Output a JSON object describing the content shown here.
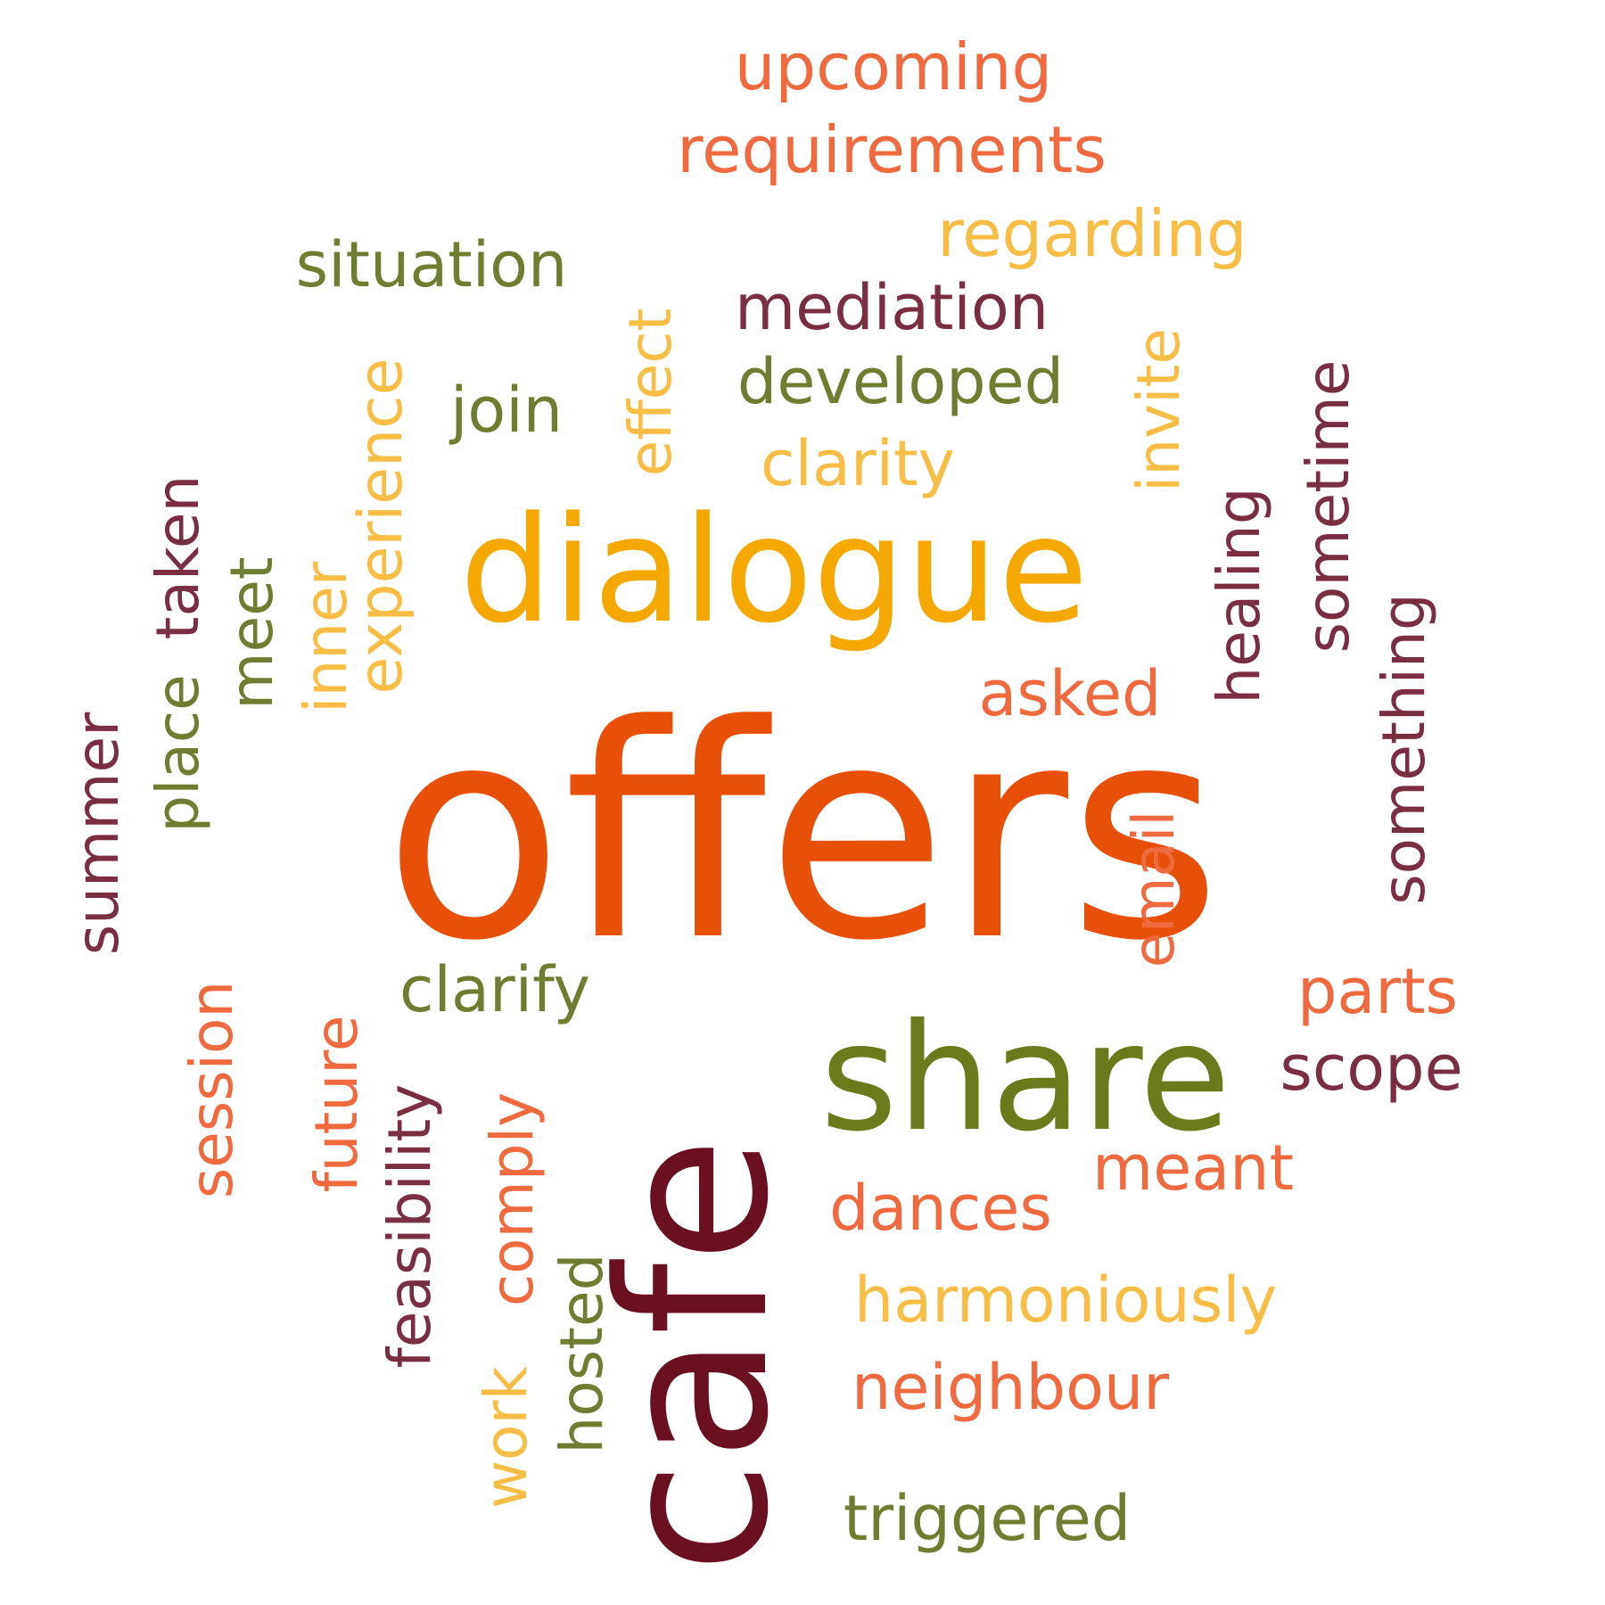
{
  "palette": {
    "maroon": "#6b1020",
    "olive": "#6b7a1a",
    "orange_red": "#e8500a",
    "gold": "#f5a800",
    "salmon": "#f06a40",
    "light_gold": "#f8bd45",
    "plum": "#7a2e42",
    "moss": "#6e7d32"
  },
  "words": [
    {
      "text": "upcoming",
      "color": "#f06a40"
    },
    {
      "text": "requirements",
      "color": "#f06a40"
    },
    {
      "text": "regarding",
      "color": "#f8bd45"
    },
    {
      "text": "situation",
      "color": "#6e7d32"
    },
    {
      "text": "mediation",
      "color": "#7a2e42"
    },
    {
      "text": "effect",
      "color": "#f8bd45"
    },
    {
      "text": "invite",
      "color": "#f8bd45"
    },
    {
      "text": "developed",
      "color": "#6e7d32"
    },
    {
      "text": "join",
      "color": "#6e7d32"
    },
    {
      "text": "experience",
      "color": "#f8bd45"
    },
    {
      "text": "sometime",
      "color": "#7a2e42"
    },
    {
      "text": "clarity",
      "color": "#f8bd45"
    },
    {
      "text": "healing",
      "color": "#7a2e42"
    },
    {
      "text": "dialogue",
      "color": "#f5a800"
    },
    {
      "text": "place",
      "color": "#6e7d32"
    },
    {
      "text": "taken",
      "color": "#7a2e42"
    },
    {
      "text": "meet",
      "color": "#6e7d32"
    },
    {
      "text": "inner",
      "color": "#f8bd45"
    },
    {
      "text": "something",
      "color": "#7a2e42"
    },
    {
      "text": "asked",
      "color": "#f06a40"
    },
    {
      "text": "summer",
      "color": "#7a2e42"
    },
    {
      "text": "offers",
      "color": "#e8500a"
    },
    {
      "text": "email",
      "color": "#f06a40"
    },
    {
      "text": "clarify",
      "color": "#6e7d32"
    },
    {
      "text": "parts",
      "color": "#f06a40"
    },
    {
      "text": "session",
      "color": "#f06a40"
    },
    {
      "text": "cafe",
      "color": "#6b1020"
    },
    {
      "text": "share",
      "color": "#6b7a1a"
    },
    {
      "text": "scope",
      "color": "#7a2e42"
    },
    {
      "text": "future",
      "color": "#f06a40"
    },
    {
      "text": "feasibility",
      "color": "#7a2e42"
    },
    {
      "text": "comply",
      "color": "#f06a40"
    },
    {
      "text": "meant",
      "color": "#f06a40"
    },
    {
      "text": "dances",
      "color": "#f06a40"
    },
    {
      "text": "hosted",
      "color": "#6e7d32"
    },
    {
      "text": "harmoniously",
      "color": "#f8bd45"
    },
    {
      "text": "work",
      "color": "#f8bd45"
    },
    {
      "text": "neighbour",
      "color": "#f06a40"
    },
    {
      "text": "triggered",
      "color": "#6e7d32"
    }
  ]
}
